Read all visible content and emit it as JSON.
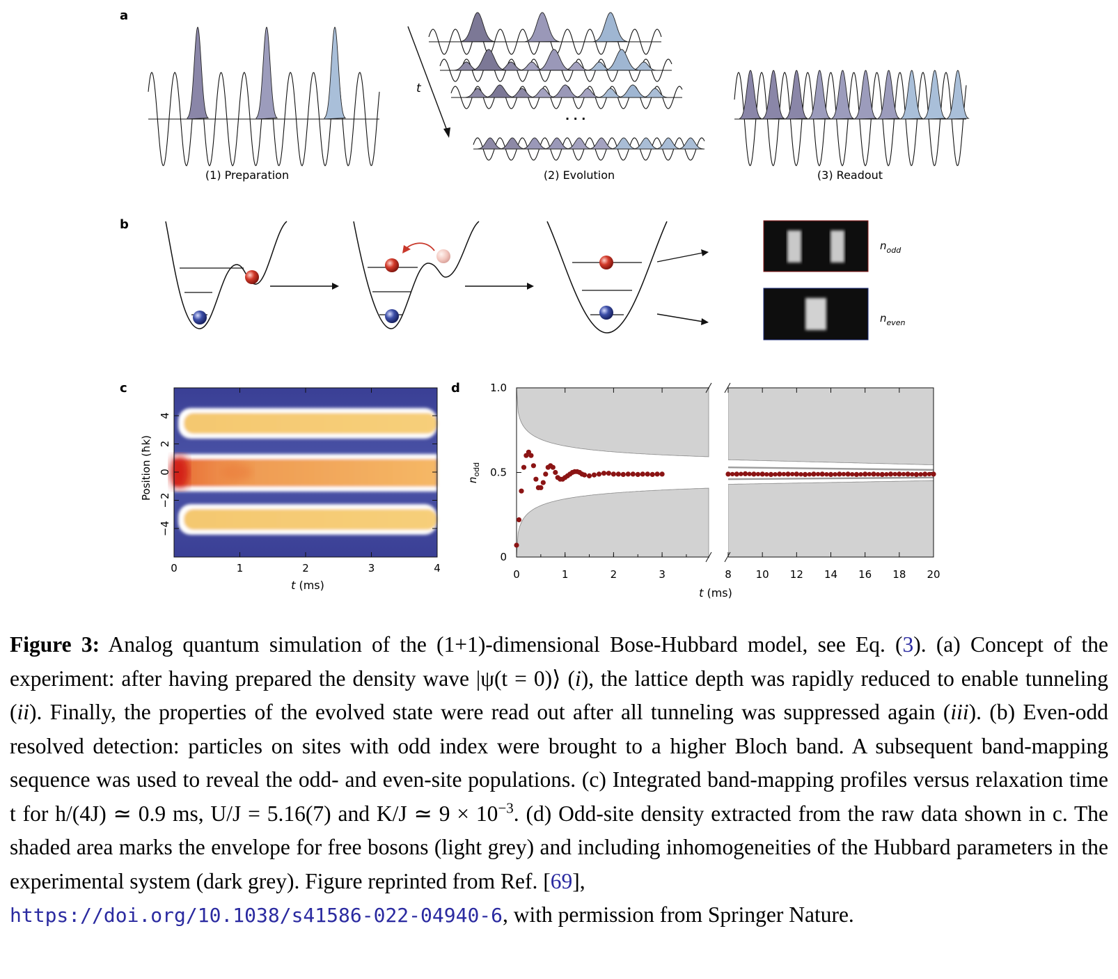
{
  "panels": {
    "a": {
      "letter": "a",
      "t_label": "t",
      "ellipsis": "· · ·",
      "stage_labels": [
        "(1)  Preparation",
        "(2)  Evolution",
        "(3)  Readout"
      ]
    },
    "b": {
      "letter": "b",
      "n_odd": "n",
      "n_odd_sub": "odd",
      "n_even": "n",
      "n_even_sub": "even"
    },
    "c": {
      "letter": "c",
      "ylabel": "Position (ħk)",
      "xlabel_var": "t",
      "xlabel_unit": " (ms)",
      "xticks": [
        "0",
        "1",
        "2",
        "3",
        "4"
      ],
      "yticks": [
        "4",
        "2",
        "0",
        "−2",
        "−4"
      ]
    },
    "d": {
      "letter": "d",
      "ylabel_var": "n",
      "ylabel_sub": "odd",
      "xlabel_var": "t",
      "xlabel_unit": "  (ms)",
      "xticks_left": [
        "0",
        "1",
        "2",
        "3"
      ],
      "xticks_right": [
        "8",
        "10",
        "12",
        "14",
        "16",
        "18",
        "20"
      ],
      "yticks": [
        "1.0",
        "0.5",
        "0"
      ]
    }
  },
  "chart_data": {
    "type": "scatter",
    "xlabel": "t (ms)",
    "ylabel": "n_odd",
    "ylim": [
      0,
      1
    ],
    "axis_break": [
      3.75,
      8
    ],
    "series": [
      {
        "values_early": [
          [
            0.0,
            0.07
          ],
          [
            0.05,
            0.22
          ],
          [
            0.1,
            0.39
          ],
          [
            0.15,
            0.53
          ],
          [
            0.2,
            0.6
          ],
          [
            0.25,
            0.62
          ],
          [
            0.3,
            0.6
          ],
          [
            0.35,
            0.54
          ],
          [
            0.4,
            0.46
          ],
          [
            0.45,
            0.41
          ],
          [
            0.5,
            0.41
          ],
          [
            0.55,
            0.44
          ],
          [
            0.6,
            0.49
          ],
          [
            0.65,
            0.53
          ],
          [
            0.7,
            0.54
          ],
          [
            0.75,
            0.53
          ],
          [
            0.8,
            0.5
          ],
          [
            0.85,
            0.47
          ],
          [
            0.9,
            0.46
          ],
          [
            0.95,
            0.46
          ],
          [
            1.0,
            0.47
          ],
          [
            1.05,
            0.48
          ],
          [
            1.1,
            0.49
          ],
          [
            1.15,
            0.5
          ],
          [
            1.2,
            0.505
          ],
          [
            1.25,
            0.505
          ],
          [
            1.3,
            0.5
          ],
          [
            1.35,
            0.49
          ],
          [
            1.4,
            0.485
          ],
          [
            1.5,
            0.48
          ],
          [
            1.6,
            0.485
          ],
          [
            1.7,
            0.49
          ],
          [
            1.8,
            0.495
          ],
          [
            1.9,
            0.495
          ],
          [
            2.0,
            0.49
          ],
          [
            2.1,
            0.49
          ],
          [
            2.2,
            0.488
          ],
          [
            2.3,
            0.49
          ],
          [
            2.4,
            0.49
          ],
          [
            2.5,
            0.488
          ],
          [
            2.6,
            0.49
          ],
          [
            2.7,
            0.49
          ],
          [
            2.8,
            0.488
          ],
          [
            2.9,
            0.49
          ],
          [
            3.0,
            0.49
          ]
        ],
        "values_late": [
          [
            8,
            0.49
          ],
          [
            8.5,
            0.49
          ],
          [
            9,
            0.492
          ],
          [
            9.5,
            0.49
          ],
          [
            10,
            0.49
          ],
          [
            10.5,
            0.488
          ],
          [
            11,
            0.49
          ],
          [
            11.5,
            0.49
          ],
          [
            12,
            0.49
          ],
          [
            12.5,
            0.488
          ],
          [
            13,
            0.49
          ],
          [
            13.5,
            0.49
          ],
          [
            14,
            0.488
          ],
          [
            14.5,
            0.49
          ],
          [
            15,
            0.49
          ],
          [
            15.5,
            0.488
          ],
          [
            16,
            0.49
          ],
          [
            16.5,
            0.49
          ],
          [
            17,
            0.488
          ],
          [
            17.5,
            0.49
          ],
          [
            18,
            0.49
          ],
          [
            18.5,
            0.49
          ],
          [
            19,
            0.488
          ],
          [
            19.5,
            0.49
          ],
          [
            20,
            0.49
          ]
        ]
      }
    ]
  },
  "caption": {
    "label": "Figure 3:",
    "part1": " Analog quantum simulation of the (1+1)-dimensional Bose-Hubbard model, see Eq. (",
    "eq_ref": "3",
    "part2": ").  (a) Concept of the experiment:  after having prepared the density wave |ψ(t = 0)⟩ (",
    "i1": "i",
    "part3": "), the lattice depth was rapidly reduced to enable tunneling (",
    "i2": "ii",
    "part4": ").  Finally, the properties of the evolved state were read out after all tunneling was suppressed again (",
    "i3": "iii",
    "part5": ").  (b) Even-odd resolved detection:  particles on sites with odd index were brought to a higher Bloch band.  A subsequent band-mapping sequence was used to reveal the odd- and even-site populations.  (c) Integrated band-mapping profiles versus relaxation time t for h/(4J) ≃ 0.9 ms, U/J = 5.16(7) and K/J ≃ 9 × 10",
    "exp": "−3",
    "part6": ".  (d) Odd-site density extracted from the raw data shown in c.  The shaded area marks the envelope for free bosons (light grey) and including inhomogeneities of the Hubbard parameters in the experimental system (dark grey). Figure reprinted from Ref. [",
    "cite": "69",
    "part7": "],",
    "url": "https://doi.org/10.1038/s41586-022-04940-6",
    "part8": ", with permission from Springer Nature."
  }
}
